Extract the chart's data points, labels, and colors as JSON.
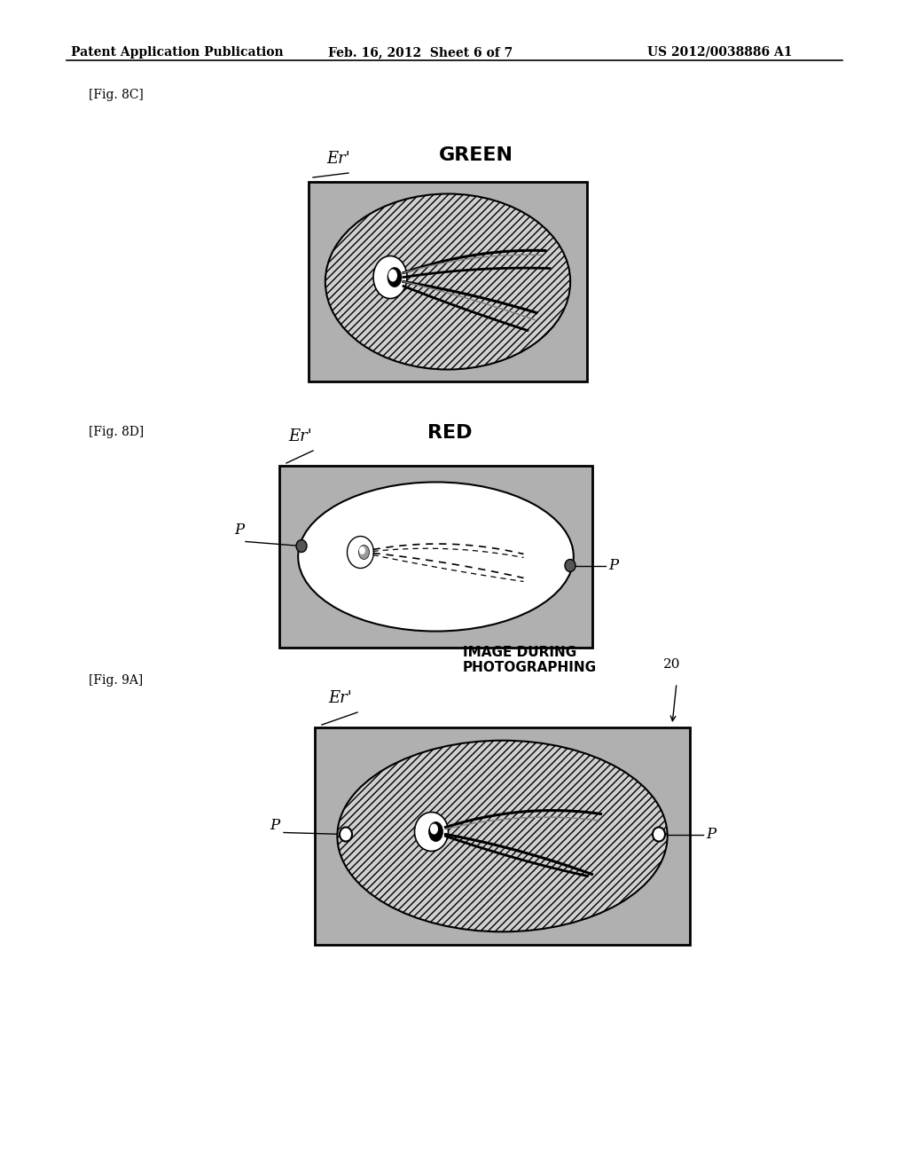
{
  "page_width": 10.24,
  "page_height": 13.2,
  "bg_color": "#ffffff",
  "header_text": "Patent Application Publication",
  "header_date": "Feb. 16, 2012  Sheet 6 of 7",
  "header_patent": "US 2012/0038886 A1",
  "fig8c_label": "[Fig. 8C]",
  "fig8d_label": "[Fig. 8D]",
  "fig9a_label": "[Fig. 9A]",
  "fig8c_title": "GREEN",
  "fig8d_title": "RED",
  "fig9a_title": "IMAGE DURING\nPHOTOGRAPHING",
  "fig9a_number": "20",
  "stipple_color": "#b0b0b0",
  "hatch_bg": "#d0d0d0"
}
